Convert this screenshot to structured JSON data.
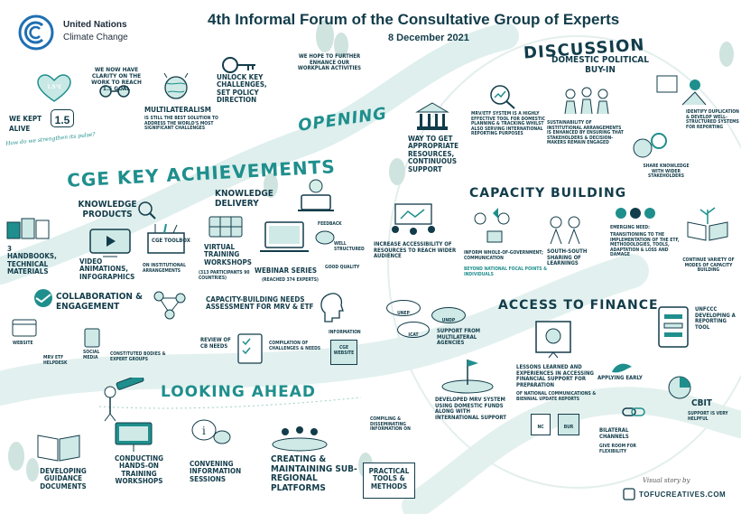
{
  "logo": {
    "org_line1": "United Nations",
    "org_line2": "Climate Change"
  },
  "header": {
    "title": "4th Informal Forum of the Consultative Group of Experts",
    "date": "8 December 2021"
  },
  "opening": {
    "heading": "Opening",
    "temp_badge": "1.5°C",
    "kept_alive": "We kept 1.5 alive",
    "kept_value": "1.5",
    "kept_prefix": "We kept",
    "kept_suffix": "alive",
    "pulse_question": "How do we strengthen its pulse?",
    "clarity": "We now have clarity on the work to reach 1.5 goal",
    "multilateralism_title": "Multilateralism",
    "multilateralism_text": "is still the best solution to address the world's most significant challenges",
    "unlock": "Unlock key challenges, set policy direction",
    "hope": "We hope to further enhance our workplan activities"
  },
  "achievements": {
    "heading": "CGE Key Achievements",
    "knowledge_products": "Knowledge Products",
    "handbooks": "3 Handbooks, technical materials",
    "video": "Video animations, infographics",
    "cge_toolbox": "CGE Toolbox",
    "toolbox_sub": "on institutional arrangements",
    "knowledge_delivery": "Knowledge Delivery",
    "virtual_training": "Virtual training workshops",
    "virtual_training_sub": "(313 participants 90 countries)",
    "webinar": "Webinar series",
    "webinar_sub": "(reached 374 experts)",
    "feedback": "Feedback",
    "well_structured": "Well structured",
    "good_quality": "Good quality",
    "collaboration": "Collaboration & Engagement",
    "website": "Website",
    "helpdesk": "MRV ETF helpdesk",
    "social_media": "Social media",
    "constituted": "Constituted bodies & expert groups",
    "capacity_needs": "Capacity-building needs assessment for MRV & ETF",
    "review_cb": "Review of CB needs",
    "compilation": "Compilation of challenges & needs",
    "information": "Information",
    "cge_website": "CGE website"
  },
  "looking_ahead": {
    "heading": "Looking Ahead",
    "guidance": "Developing guidance documents",
    "hands_on": "Conducting hands-on training workshops",
    "convening": "Convening information sessions",
    "platforms": "Creating & maintaining sub-regional platforms",
    "compiling": "Compiling & disseminating information on",
    "practical": "Practical tools & methods"
  },
  "discussion": {
    "heading": "Discussion",
    "domestic": "Domestic political buy-in",
    "way_to_get": "Way to get appropriate resources, continuous support",
    "mrv_etf": "MRV/ETF system is a highly effective tool for domestic planning & tracking whilst also serving international reporting purposes",
    "sustainability": "Sustainability of institutional arrangements is enhanced by ensuring that stakeholders & decision-makers remain engaged",
    "identify": "Identify duplication & develop well-structured systems for reporting",
    "share_knowledge": "Share knowledge with wider stakeholders"
  },
  "capacity_building": {
    "heading": "Capacity Building",
    "increase": "Increase accessibility of resources to reach wider audience",
    "inform": "Inform whole-of-government; communication",
    "inform_sub": "beyond national focal points & individuals",
    "south_south": "South-South sharing of learnings",
    "emerging_title": "Emerging need:",
    "emerging_text": "transitioning to the implementation of the ETF, methodologies, tools, adaptation & loss and damage",
    "continue_variety": "Continue variety of modes of capacity building"
  },
  "access_finance": {
    "heading": "Access to Finance",
    "unep": "UNEP",
    "undp": "UNDP",
    "icat": "ICAT",
    "support_multilateral": "Support from multilateral agencies",
    "developed_mrv": "Developed MRV system using domestic funds along with international support",
    "lessons": "Lessons learned and experiences in accessing financial support for preparation",
    "lessons_sub": "of national communications & biennial update reports",
    "nc": "NC",
    "bur": "BUR",
    "unfccc": "UNFCCC developing a reporting tool",
    "applying": "Applying early",
    "bilateral": "Bilateral channels",
    "bilateral_sub": "give room for flexibility",
    "cbit": "CBIT",
    "cbit_text": "support is very helpful"
  },
  "credit": {
    "visual_story": "Visual story by",
    "brand": "TOFUCREATIVES.COM"
  },
  "colors": {
    "teal": "#1f8f8d",
    "dark_navy": "#123c4a",
    "light_teal": "#cfe9e6",
    "wash": "#e8f4f2"
  }
}
